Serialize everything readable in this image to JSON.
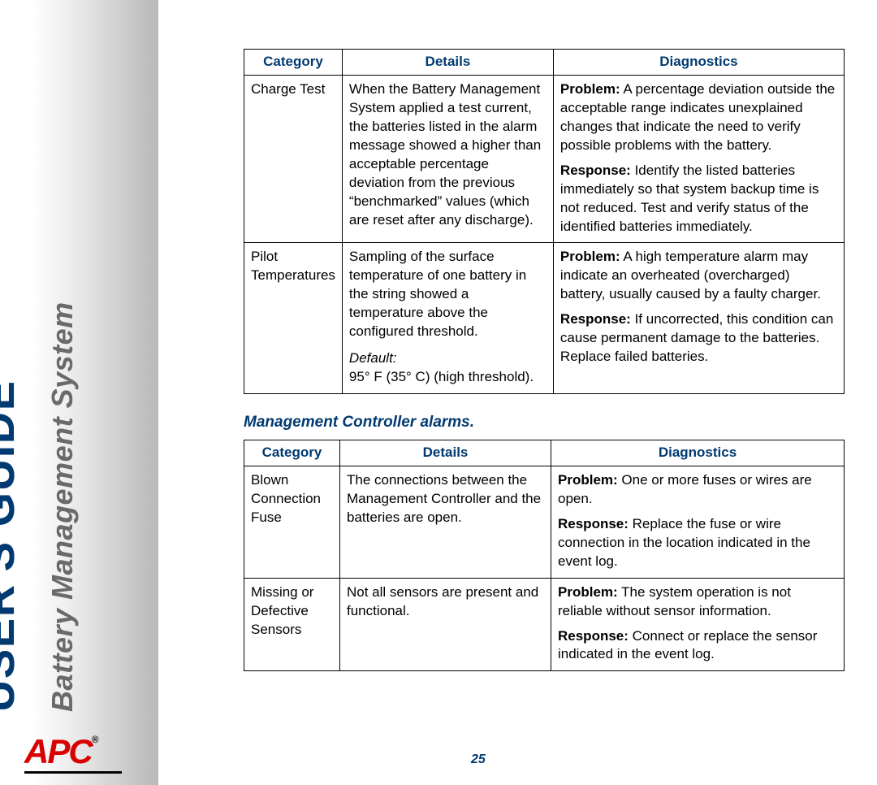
{
  "sidebar": {
    "main": "USER'S GUIDE",
    "sub": "Battery Management System",
    "logo_text": "APC",
    "logo_color": "#d80000"
  },
  "accent_color": "#003a70",
  "section_title": "Management Controller alarms.",
  "page_number": "25",
  "table1": {
    "headers": {
      "category": "Category",
      "details": "Details",
      "diagnostics": "Diagnostics"
    },
    "rows": [
      {
        "category": "Charge Test",
        "details": "When the Battery Management System applied a test current, the batteries listed in the alarm message showed a higher than acceptable percentage deviation from the previous “benchmarked” values (which are reset after any discharge).",
        "problem_label": "Problem:",
        "problem": "A percentage deviation outside the acceptable range indicates unexplained changes that indicate the need to verify possible problems with the battery.",
        "response_label": "Response:",
        "response": "Identify the listed batteries immediately so that system backup time is not reduced. Test and verify status of the identified batteries immediately."
      },
      {
        "category": "Pilot Temperatures",
        "details": "Sampling of the surface temperature of one battery in the string showed a temperature above the configured threshold.",
        "default_label": "Default:",
        "default_value": "95° F (35° C) (high threshold).",
        "problem_label": "Problem:",
        "problem": "A high temperature alarm may indicate an overheated (overcharged) battery, usually caused by a faulty charger.",
        "response_label": "Response:",
        "response": "If uncorrected, this condition can cause permanent damage to the batteries. Replace failed batteries."
      }
    ]
  },
  "table2": {
    "headers": {
      "category": "Category",
      "details": "Details",
      "diagnostics": "Diagnostics"
    },
    "rows": [
      {
        "category": "Blown Connection Fuse",
        "details": "The connections between the Management Controller and the batteries are open.",
        "problem_label": "Problem:",
        "problem": "One or more fuses or wires are open.",
        "response_label": "Response:",
        "response": "Replace the fuse or wire connection in the location indicated in the event log."
      },
      {
        "category": "Missing or Defective Sensors",
        "details": "Not all sensors are present and functional.",
        "problem_label": "Problem:",
        "problem": "The system operation is not reliable without sensor information.",
        "response_label": "Response:",
        "response": "Connect or replace the sensor indicated in the event log."
      }
    ]
  }
}
